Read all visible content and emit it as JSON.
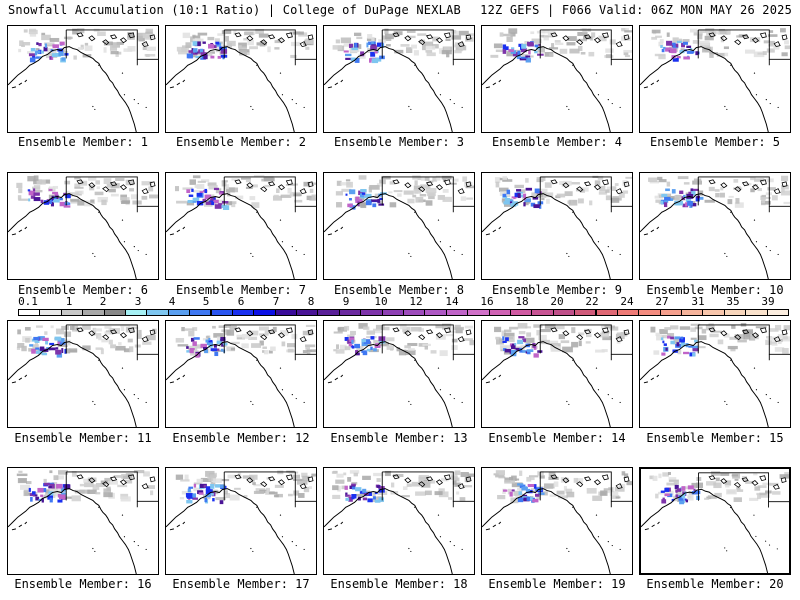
{
  "header": {
    "title_left": "Snowfall Accumulation (10:1 Ratio) | College of DuPage NEXLAB",
    "title_right": "12Z GEFS | F066 Valid: 06Z MON MAY 26 2025"
  },
  "legend": {
    "labels": [
      "0.1",
      "1",
      "2",
      "3",
      "4",
      "5",
      "6",
      "7",
      "8",
      "9",
      "10",
      "12",
      "14",
      "16",
      "18",
      "20",
      "22",
      "24",
      "27",
      "31",
      "35",
      "39"
    ],
    "colors": [
      "#ffffff",
      "#e8e8e8",
      "#c8c8c8",
      "#a8a8a8",
      "#888888",
      "#a6f0f4",
      "#7ec6f0",
      "#5a9ff0",
      "#3f78f2",
      "#2a55f0",
      "#1a30f0",
      "#0c10e6",
      "#3a0c9a",
      "#4a1496",
      "#5a2098",
      "#6c2aa0",
      "#7e34aa",
      "#8e40b4",
      "#9e4cbc",
      "#ae58c4",
      "#c064c8",
      "#d070c8",
      "#d062b4",
      "#d05aa2",
      "#c85494",
      "#c0508a",
      "#d05a7a",
      "#e06874",
      "#ee7a76",
      "#f48c80",
      "#f6a08e",
      "#f6b49c",
      "#f8c6ac",
      "#f8d6bc",
      "#fae2cc",
      "#fceee0"
    ]
  },
  "panels": [
    {
      "label": "Ensemble Member: 1"
    },
    {
      "label": "Ensemble Member: 2"
    },
    {
      "label": "Ensemble Member: 3"
    },
    {
      "label": "Ensemble Member: 4"
    },
    {
      "label": "Ensemble Member: 5"
    },
    {
      "label": "Ensemble Member: 6"
    },
    {
      "label": "Ensemble Member: 7"
    },
    {
      "label": "Ensemble Member: 8"
    },
    {
      "label": "Ensemble Member: 9"
    },
    {
      "label": "Ensemble Member: 10"
    },
    {
      "label": "Ensemble Member: 11"
    },
    {
      "label": "Ensemble Member: 12"
    },
    {
      "label": "Ensemble Member: 13"
    },
    {
      "label": "Ensemble Member: 14"
    },
    {
      "label": "Ensemble Member: 15"
    },
    {
      "label": "Ensemble Member: 16"
    },
    {
      "label": "Ensemble Member: 17"
    },
    {
      "label": "Ensemble Member: 18"
    },
    {
      "label": "Ensemble Member: 19"
    },
    {
      "label": "Ensemble Member: 20"
    }
  ]
}
